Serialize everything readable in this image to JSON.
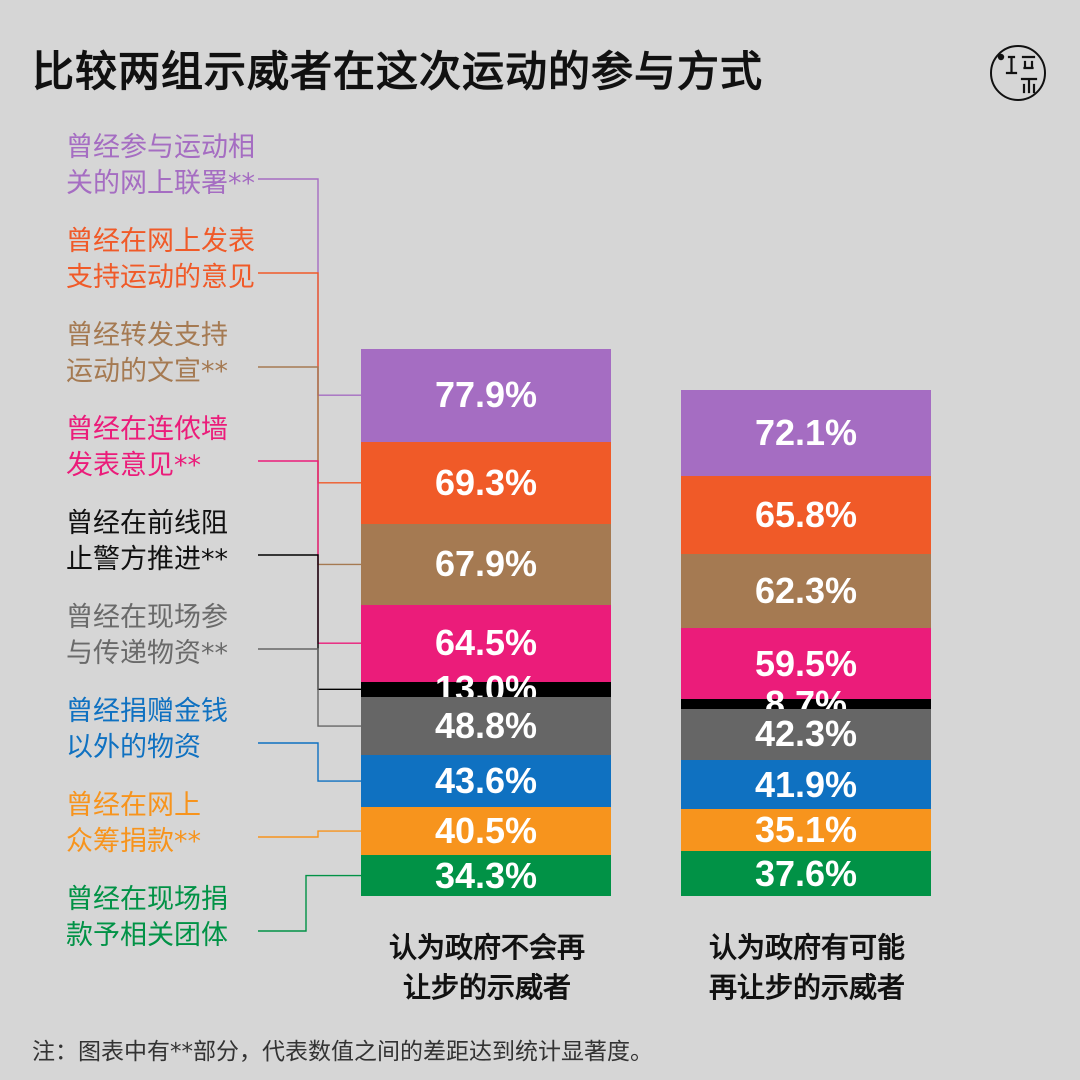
{
  "title": "比较两组示威者在这次运动的参与方式",
  "note": "注：图表中有**部分，代表数值之间的差距达到统计显著度。",
  "colors": {
    "background": "#d6d6d6"
  },
  "logo": {
    "icon": "initium-media-logo"
  },
  "chart_data": {
    "type": "bar",
    "title": "比较两组示威者在这次运动的参与方式",
    "unit": "%",
    "categories": [
      "认为政府不会再让步的示威者",
      "认为政府有可能再让步的示威者"
    ],
    "category_lines": [
      [
        "认为政府不会再",
        "让步的示威者"
      ],
      [
        "认为政府有可能",
        "再让步的示威者"
      ]
    ],
    "series": [
      {
        "name": "曾经参与运动相关的网上联署**",
        "lines": [
          "曾经参与运动相",
          "关的网上联署**"
        ],
        "color": "#a56dc2",
        "values": [
          77.9,
          72.1
        ]
      },
      {
        "name": "曾经在网上发表支持运动的意见",
        "lines": [
          "曾经在网上发表",
          "支持运动的意见"
        ],
        "color": "#f05a28",
        "values": [
          69.3,
          65.8
        ]
      },
      {
        "name": "曾经转发支持运动的文宣**",
        "lines": [
          "曾经转发支持",
          "运动的文宣**"
        ],
        "color": "#a57a52",
        "values": [
          67.9,
          62.3
        ]
      },
      {
        "name": "曾经在连侬墙发表意见**",
        "lines": [
          "曾经在连侬墙",
          "发表意见**"
        ],
        "color": "#eb1c7a",
        "values": [
          64.5,
          59.5
        ]
      },
      {
        "name": "曾经在前线阻止警方推进**",
        "lines": [
          "曾经在前线阻",
          "止警方推进**"
        ],
        "color": "#000000",
        "label_color": "#111111",
        "values": [
          13.0,
          8.7
        ]
      },
      {
        "name": "曾经在现场参与传递物资**",
        "lines": [
          "曾经在现场参",
          "与传递物资**"
        ],
        "color": "#666666",
        "label_color": "#6a6a6a",
        "values": [
          48.8,
          42.3
        ]
      },
      {
        "name": "曾经捐赠金钱以外的物资",
        "lines": [
          "曾经捐赠金钱",
          "以外的物资"
        ],
        "color": "#0f71c1",
        "values": [
          43.6,
          41.9
        ]
      },
      {
        "name": "曾经在网上众筹捐款**",
        "lines": [
          "曾经在网上",
          "众筹捐款**"
        ],
        "color": "#f7941d",
        "values": [
          40.5,
          35.1
        ]
      },
      {
        "name": "曾经在现场捐款予相关团体",
        "lines": [
          "曾经在现场捐",
          "款予相关团体"
        ],
        "color": "#019246",
        "values": [
          34.3,
          37.6
        ]
      }
    ]
  }
}
